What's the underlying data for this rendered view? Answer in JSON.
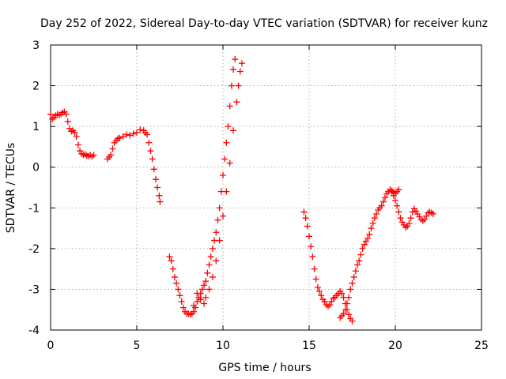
{
  "chart_data": {
    "type": "scatter",
    "title": "Day 252 of 2022, Sidereal Day-to-day VTEC variation (SDTVAR) for receiver kunz",
    "xlabel": "GPS time / hours",
    "ylabel": "SDTVAR / TECUs",
    "xlim": [
      0,
      25
    ],
    "ylim": [
      -4,
      3
    ],
    "xticks": [
      0,
      5,
      10,
      15,
      20,
      25
    ],
    "yticks": [
      -4,
      -3,
      -2,
      -1,
      0,
      1,
      2,
      3
    ],
    "xtick_labels": [
      "0",
      "5",
      "10",
      "15",
      "20",
      "25"
    ],
    "ytick_labels": [
      "-4",
      "-3",
      "-2",
      "-1",
      "0",
      "1",
      "2",
      "3"
    ],
    "grid": true,
    "marker": "plus",
    "color": "#ff0000",
    "series": [
      {
        "points": [
          [
            0.0,
            1.3
          ],
          [
            0.1,
            1.18
          ],
          [
            0.2,
            1.22
          ],
          [
            0.3,
            1.27
          ],
          [
            0.4,
            1.3
          ],
          [
            0.5,
            1.28
          ],
          [
            0.6,
            1.3
          ],
          [
            0.7,
            1.34
          ],
          [
            0.8,
            1.36
          ],
          [
            0.9,
            1.3
          ],
          [
            1.0,
            1.12
          ],
          [
            1.1,
            0.95
          ],
          [
            1.2,
            0.88
          ],
          [
            1.3,
            0.9
          ],
          [
            1.4,
            0.85
          ],
          [
            1.5,
            0.75
          ],
          [
            1.6,
            0.55
          ],
          [
            1.7,
            0.4
          ],
          [
            1.8,
            0.33
          ],
          [
            1.9,
            0.3
          ],
          [
            2.0,
            0.32
          ],
          [
            2.1,
            0.28
          ],
          [
            2.2,
            0.27
          ],
          [
            2.3,
            0.3
          ],
          [
            2.4,
            0.26
          ],
          [
            2.5,
            0.3
          ]
        ]
      },
      {
        "points": [
          [
            3.3,
            0.2
          ],
          [
            3.4,
            0.25
          ],
          [
            3.5,
            0.3
          ],
          [
            3.6,
            0.45
          ],
          [
            3.7,
            0.6
          ],
          [
            3.8,
            0.65
          ],
          [
            3.9,
            0.7
          ],
          [
            4.0,
            0.72
          ],
          [
            4.2,
            0.75
          ],
          [
            4.4,
            0.8
          ],
          [
            4.6,
            0.78
          ],
          [
            4.8,
            0.82
          ],
          [
            5.0,
            0.85
          ],
          [
            5.2,
            0.92
          ],
          [
            5.4,
            0.9
          ],
          [
            5.5,
            0.85
          ],
          [
            5.6,
            0.8
          ],
          [
            5.7,
            0.6
          ],
          [
            5.8,
            0.4
          ],
          [
            5.9,
            0.2
          ],
          [
            6.0,
            -0.05
          ],
          [
            6.1,
            -0.3
          ],
          [
            6.2,
            -0.5
          ],
          [
            6.3,
            -0.7
          ],
          [
            6.35,
            -0.85
          ]
        ]
      },
      {
        "points": [
          [
            6.9,
            -2.2
          ],
          [
            7.0,
            -2.3
          ],
          [
            7.1,
            -2.5
          ],
          [
            7.2,
            -2.7
          ],
          [
            7.3,
            -2.85
          ],
          [
            7.4,
            -3.0
          ],
          [
            7.5,
            -3.15
          ],
          [
            7.6,
            -3.3
          ],
          [
            7.7,
            -3.45
          ],
          [
            7.8,
            -3.55
          ],
          [
            7.9,
            -3.6
          ],
          [
            8.0,
            -3.6
          ],
          [
            8.1,
            -3.62
          ],
          [
            8.2,
            -3.6
          ],
          [
            8.3,
            -3.55
          ],
          [
            8.4,
            -3.45
          ],
          [
            8.5,
            -3.3
          ],
          [
            8.6,
            -3.2
          ],
          [
            8.7,
            -3.1
          ],
          [
            8.8,
            -3.0
          ],
          [
            8.9,
            -2.9
          ],
          [
            9.0,
            -2.8
          ],
          [
            9.1,
            -2.6
          ],
          [
            9.2,
            -2.4
          ],
          [
            9.3,
            -2.2
          ],
          [
            9.4,
            -2.0
          ],
          [
            9.5,
            -1.8
          ],
          [
            9.6,
            -1.6
          ],
          [
            9.7,
            -1.3
          ],
          [
            9.8,
            -1.0
          ],
          [
            9.9,
            -0.6
          ],
          [
            10.0,
            -0.2
          ],
          [
            10.1,
            0.2
          ],
          [
            10.2,
            0.6
          ],
          [
            10.3,
            1.0
          ],
          [
            10.4,
            1.5
          ],
          [
            10.5,
            2.0
          ],
          [
            10.6,
            2.4
          ],
          [
            10.7,
            2.65
          ],
          [
            8.3,
            -3.4
          ],
          [
            8.5,
            -3.1
          ],
          [
            8.7,
            -3.25
          ],
          [
            8.9,
            -3.35
          ],
          [
            9.0,
            -3.2
          ],
          [
            9.2,
            -3.0
          ],
          [
            9.4,
            -2.7
          ],
          [
            9.6,
            -2.3
          ],
          [
            9.8,
            -1.8
          ],
          [
            10.0,
            -1.2
          ],
          [
            10.2,
            -0.6
          ],
          [
            10.4,
            0.1
          ],
          [
            10.6,
            0.9
          ],
          [
            10.8,
            1.6
          ],
          [
            10.9,
            2.0
          ],
          [
            11.0,
            2.35
          ],
          [
            11.1,
            2.55
          ]
        ]
      },
      {
        "points": [
          [
            14.7,
            -1.1
          ],
          [
            14.8,
            -1.25
          ],
          [
            14.9,
            -1.45
          ],
          [
            15.0,
            -1.7
          ],
          [
            15.1,
            -1.95
          ],
          [
            15.2,
            -2.2
          ],
          [
            15.3,
            -2.5
          ],
          [
            15.4,
            -2.75
          ],
          [
            15.5,
            -2.95
          ],
          [
            15.6,
            -3.05
          ],
          [
            15.7,
            -3.15
          ],
          [
            15.8,
            -3.25
          ],
          [
            15.9,
            -3.3
          ],
          [
            16.0,
            -3.38
          ],
          [
            16.1,
            -3.42
          ],
          [
            16.2,
            -3.38
          ],
          [
            16.3,
            -3.3
          ],
          [
            16.4,
            -3.22
          ],
          [
            16.5,
            -3.2
          ],
          [
            16.6,
            -3.15
          ],
          [
            16.7,
            -3.1
          ],
          [
            16.8,
            -3.05
          ],
          [
            16.9,
            -3.1
          ],
          [
            17.0,
            -3.2
          ],
          [
            17.1,
            -3.35
          ],
          [
            17.2,
            -3.5
          ],
          [
            17.3,
            -3.62
          ],
          [
            17.4,
            -3.72
          ],
          [
            17.5,
            -3.78
          ],
          [
            16.8,
            -3.7
          ],
          [
            16.9,
            -3.65
          ],
          [
            17.0,
            -3.6
          ],
          [
            17.1,
            -3.5
          ],
          [
            17.2,
            -3.35
          ],
          [
            17.3,
            -3.2
          ],
          [
            17.4,
            -3.0
          ],
          [
            17.5,
            -2.85
          ],
          [
            17.6,
            -2.7
          ],
          [
            17.7,
            -2.55
          ],
          [
            17.8,
            -2.4
          ],
          [
            17.9,
            -2.3
          ],
          [
            18.0,
            -2.15
          ],
          [
            18.1,
            -2.0
          ],
          [
            18.2,
            -1.9
          ],
          [
            18.3,
            -1.82
          ],
          [
            18.4,
            -1.75
          ],
          [
            18.5,
            -1.65
          ],
          [
            18.6,
            -1.5
          ],
          [
            18.7,
            -1.38
          ],
          [
            18.8,
            -1.25
          ],
          [
            18.9,
            -1.15
          ],
          [
            19.0,
            -1.05
          ],
          [
            19.1,
            -1.0
          ],
          [
            19.2,
            -0.95
          ],
          [
            19.3,
            -0.85
          ],
          [
            19.4,
            -0.75
          ],
          [
            19.5,
            -0.65
          ],
          [
            19.6,
            -0.6
          ],
          [
            19.7,
            -0.55
          ],
          [
            19.8,
            -0.58
          ],
          [
            19.9,
            -0.62
          ],
          [
            20.0,
            -0.65
          ],
          [
            20.1,
            -0.6
          ],
          [
            20.2,
            -0.55
          ],
          [
            19.8,
            -0.6
          ],
          [
            19.9,
            -0.7
          ],
          [
            20.0,
            -0.82
          ],
          [
            20.1,
            -0.95
          ],
          [
            20.2,
            -1.1
          ],
          [
            20.3,
            -1.25
          ],
          [
            20.4,
            -1.35
          ],
          [
            20.5,
            -1.42
          ],
          [
            20.6,
            -1.48
          ],
          [
            20.7,
            -1.45
          ],
          [
            20.8,
            -1.38
          ],
          [
            20.9,
            -1.25
          ],
          [
            21.0,
            -1.1
          ],
          [
            21.1,
            -1.02
          ],
          [
            21.2,
            -1.08
          ],
          [
            21.3,
            -1.15
          ],
          [
            21.4,
            -1.22
          ],
          [
            21.5,
            -1.28
          ],
          [
            21.6,
            -1.32
          ],
          [
            21.7,
            -1.28
          ],
          [
            21.8,
            -1.2
          ],
          [
            21.9,
            -1.12
          ],
          [
            22.0,
            -1.1
          ],
          [
            22.1,
            -1.12
          ],
          [
            22.2,
            -1.15
          ]
        ]
      }
    ]
  }
}
